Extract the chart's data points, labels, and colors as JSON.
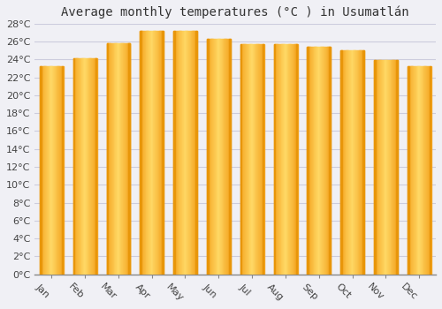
{
  "title": "Average monthly temperatures (°C ) in Usumatlán",
  "months": [
    "Jan",
    "Feb",
    "Mar",
    "Apr",
    "May",
    "Jun",
    "Jul",
    "Aug",
    "Sep",
    "Oct",
    "Nov",
    "Dec"
  ],
  "values": [
    23.2,
    24.1,
    25.8,
    27.2,
    27.2,
    26.3,
    25.7,
    25.7,
    25.4,
    25.0,
    23.9,
    23.2
  ],
  "bar_color_left": "#F5A623",
  "bar_color_center": "#FFD966",
  "bar_color_right": "#F5A623",
  "ylim": [
    0,
    28
  ],
  "ytick_step": 2,
  "background_color": "#f0f0f5",
  "plot_bg_color": "#f0f0f5",
  "grid_color": "#ccccdd",
  "title_fontsize": 10,
  "tick_fontsize": 8,
  "label_rotation": -45
}
